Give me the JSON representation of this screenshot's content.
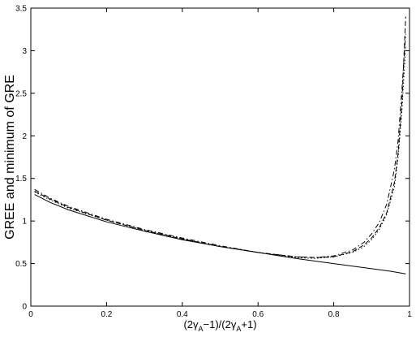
{
  "chart_data": {
    "type": "line",
    "title": "",
    "xlabel_parts": [
      "(2γ",
      "A",
      "−1)/(2γ",
      "A",
      "+1)"
    ],
    "ylabel": "GREE and minimum of GRE",
    "xlim": [
      0,
      1
    ],
    "ylim": [
      0,
      3.5
    ],
    "xticks": [
      0,
      0.2,
      0.4,
      0.6,
      0.8,
      1
    ],
    "xtick_labels": [
      "0",
      "0.2",
      "0.4",
      "0.6",
      "0.8",
      "1"
    ],
    "yticks": [
      0,
      0.5,
      1,
      1.5,
      2,
      2.5,
      3,
      3.5
    ],
    "ytick_labels": [
      "0",
      "0.5",
      "1",
      "1.5",
      "2",
      "2.5",
      "3",
      "3.5"
    ],
    "grid": false,
    "legend": "none",
    "series": [
      {
        "style": "solid",
        "x": [
          0.01,
          0.05,
          0.1,
          0.2,
          0.3,
          0.4,
          0.5,
          0.6,
          0.7,
          0.8,
          0.85,
          0.9,
          0.95,
          0.99
        ],
        "y": [
          1.31,
          1.22,
          1.13,
          0.99,
          0.88,
          0.78,
          0.7,
          0.63,
          0.56,
          0.5,
          0.47,
          0.44,
          0.41,
          0.38
        ]
      },
      {
        "style": "dashed",
        "x": [
          0.01,
          0.05,
          0.1,
          0.2,
          0.3,
          0.4,
          0.5,
          0.6,
          0.7,
          0.75,
          0.8,
          0.85,
          0.88,
          0.9,
          0.92,
          0.94,
          0.96,
          0.97,
          0.98,
          0.99
        ],
        "y": [
          1.35,
          1.26,
          1.16,
          1.01,
          0.89,
          0.79,
          0.7,
          0.63,
          0.58,
          0.57,
          0.58,
          0.64,
          0.72,
          0.8,
          0.92,
          1.1,
          1.45,
          1.8,
          2.4,
          3.4
        ]
      },
      {
        "style": "dashdot",
        "x": [
          0.01,
          0.05,
          0.1,
          0.2,
          0.3,
          0.4,
          0.5,
          0.6,
          0.7,
          0.75,
          0.8,
          0.85,
          0.88,
          0.9,
          0.92,
          0.94,
          0.96,
          0.97,
          0.98,
          0.99
        ],
        "y": [
          1.37,
          1.27,
          1.17,
          1.02,
          0.9,
          0.8,
          0.71,
          0.63,
          0.58,
          0.57,
          0.59,
          0.66,
          0.75,
          0.85,
          0.98,
          1.2,
          1.6,
          1.95,
          2.55,
          3.2
        ]
      },
      {
        "style": "dotted",
        "x": [
          0.01,
          0.05,
          0.1,
          0.2,
          0.3,
          0.4,
          0.5,
          0.6,
          0.7,
          0.75,
          0.8,
          0.85,
          0.88,
          0.9,
          0.92,
          0.94,
          0.96,
          0.97,
          0.98,
          0.99
        ],
        "y": [
          1.34,
          1.25,
          1.15,
          1.01,
          0.89,
          0.79,
          0.7,
          0.63,
          0.57,
          0.56,
          0.58,
          0.63,
          0.7,
          0.78,
          0.9,
          1.08,
          1.4,
          1.75,
          2.3,
          3.05
        ]
      }
    ]
  }
}
